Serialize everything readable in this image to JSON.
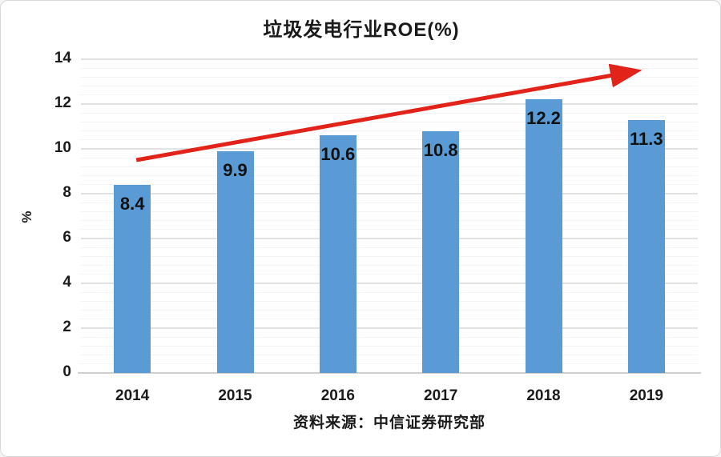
{
  "chart_data": {
    "type": "bar",
    "title": "垃圾发电行业ROE(%)",
    "ylabel": "%",
    "xlabel": "",
    "categories": [
      "2014",
      "2015",
      "2016",
      "2017",
      "2018",
      "2019"
    ],
    "values": [
      8.4,
      9.9,
      10.6,
      10.8,
      12.2,
      11.3
    ],
    "ylim": [
      0,
      14
    ],
    "y_tick_step": 2,
    "y_minor_step": 0.4,
    "grid": "on",
    "legend": "none",
    "bar_color": "#5b9bd5",
    "trend_arrow": {
      "color": "#e2231a",
      "from": {
        "category": "2014",
        "value": 9.5
      },
      "to": {
        "category": "2019",
        "value": 13.6
      }
    }
  },
  "source_note": "资料来源：中信证券研究部"
}
